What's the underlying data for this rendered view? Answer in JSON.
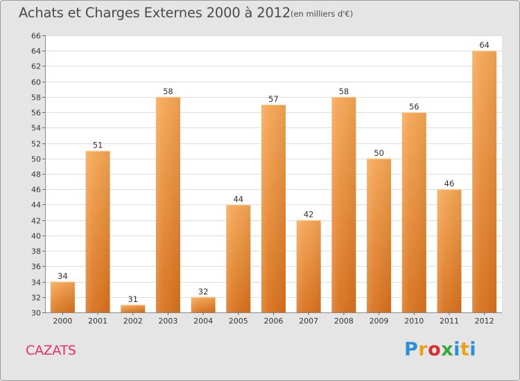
{
  "header": {
    "title": "Achats et Charges Externes 2000 à 2012",
    "subtitle": "(en milliers d'€)"
  },
  "footer": {
    "commune": "CAZATS",
    "brand_letters": [
      "P",
      "r",
      "o",
      "x",
      "i",
      "t",
      "i"
    ],
    "brand_colors": [
      "#2a8fd6",
      "#e8a11f",
      "#d82f2f",
      "#3aa640",
      "#2a8fd6",
      "#e8a11f",
      "#2a8fd6"
    ]
  },
  "chart_data": {
    "type": "bar",
    "title": "Achats et Charges Externes 2000 à 2012",
    "subtitle": "(en milliers d'€)",
    "categories": [
      "2000",
      "2001",
      "2002",
      "2003",
      "2004",
      "2005",
      "2006",
      "2007",
      "2008",
      "2009",
      "2010",
      "2011",
      "2012"
    ],
    "values": [
      34,
      51,
      31,
      58,
      32,
      44,
      57,
      42,
      58,
      50,
      56,
      46,
      64
    ],
    "ylim": [
      30,
      66
    ],
    "yticks": [
      30,
      32,
      34,
      36,
      38,
      40,
      42,
      44,
      46,
      48,
      50,
      52,
      54,
      56,
      58,
      60,
      62,
      64,
      66
    ],
    "grid": true,
    "bar_color_top": "#f5a654",
    "bar_color_bottom": "#d8711c",
    "plot_background": "#ffffff",
    "grid_color": "#dddddd"
  }
}
